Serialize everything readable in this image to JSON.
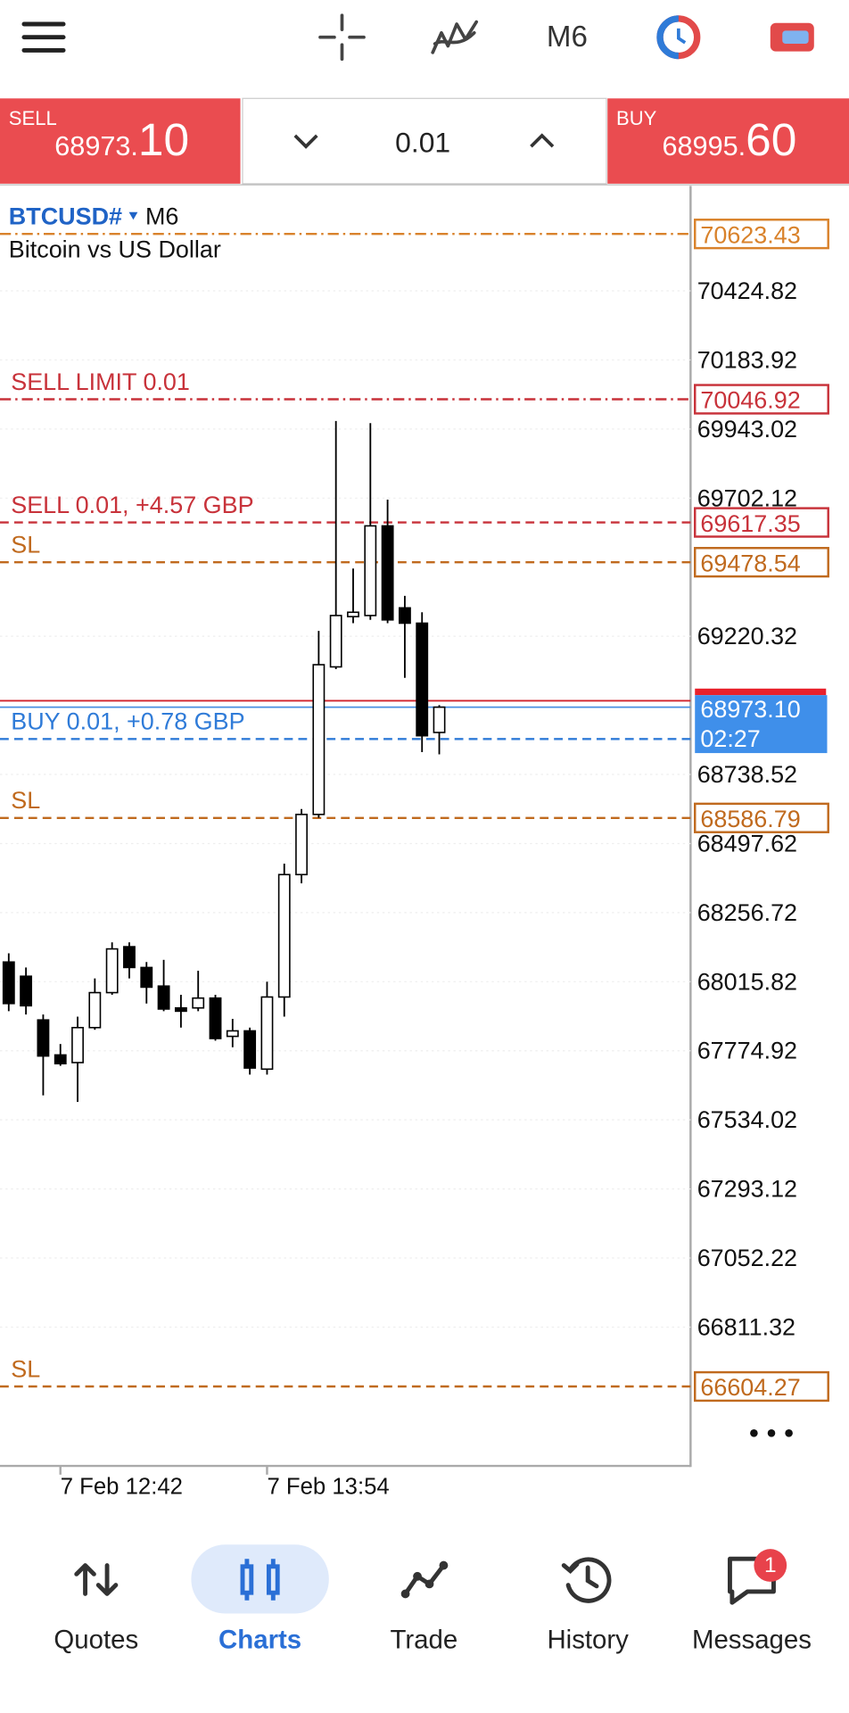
{
  "toolbar": {
    "timeframe": "M6"
  },
  "trade_panel": {
    "sell": {
      "label": "SELL",
      "price_main": "68973.",
      "price_pips": "10"
    },
    "volume": "0.01",
    "buy": {
      "label": "BUY",
      "price_main": "68995.",
      "price_pips": "60"
    }
  },
  "chart_data": {
    "type": "candlestick",
    "symbol": "BTCUSD#",
    "timeframe": "M6",
    "description": "Bitcoin vs US Dollar",
    "categories": [
      null,
      null,
      null,
      "7 Feb 12:42",
      null,
      null,
      null,
      null,
      null,
      null,
      null,
      null,
      null,
      null,
      null,
      "7 Feb 13:54",
      null,
      null,
      null,
      null,
      null,
      null,
      null,
      null,
      null,
      null
    ],
    "open": [
      68084.4,
      68034.8,
      67882.4,
      67760.4,
      67733.7,
      67855.7,
      67977.7,
      68137.8,
      68065.3,
      68000.5,
      67924.3,
      67924.3,
      67958.6,
      67825.2,
      67844.3,
      67710.9,
      67962.4,
      68389.3,
      68599,
      69113.6,
      69288.9,
      69292.7,
      69605.3,
      69319.4,
      69266,
      68884.9
    ],
    "high": [
      68114.9,
      68065.3,
      67901.4,
      67798.5,
      67893.8,
      68027.2,
      68153,
      68153,
      68084.4,
      68092,
      67970.1,
      68053.9,
      67970.1,
      67886.2,
      67855.7,
      68015.8,
      68427.5,
      68618,
      69239.3,
      69971.2,
      69456.6,
      69963.6,
      69696.8,
      69361.3,
      69304.1,
      68980.2
    ],
    "low": [
      67912.9,
      67901.4,
      67619.4,
      67722.3,
      67596.5,
      67848.1,
      67970.1,
      68027.2,
      67939.6,
      67912.9,
      67855.7,
      67912.9,
      67810,
      67787.1,
      67691.8,
      67691.8,
      67893.8,
      68358.8,
      68587.5,
      69105.9,
      69266,
      69277.5,
      69266,
      69075.4,
      68816.3,
      68808.6
    ],
    "close": [
      67939.6,
      67931.9,
      67756.6,
      67729.9,
      67855.7,
      67977.7,
      68130.1,
      68065.3,
      67996.7,
      67920.5,
      67912.9,
      67958.6,
      67817.6,
      67844.3,
      67714.7,
      67962.4,
      68389.3,
      68599,
      69121.2,
      69292.7,
      69304.1,
      69605.3,
      69277.5,
      69266,
      68873.4,
      68973.1
    ],
    "up_color": "#ffffff",
    "down_color": "#000000",
    "ylim": [
      66331,
      70791
    ],
    "yticks": [
      70424.82,
      70183.92,
      69943.02,
      69702.12,
      69220.32,
      68738.52,
      68497.62,
      68256.72,
      68015.82,
      67774.92,
      67534.02,
      67293.12,
      67052.22,
      66811.32
    ],
    "grid": true,
    "levels": [
      {
        "value": 70623.43,
        "color": "#d9822b",
        "style": "dashdot"
      },
      {
        "value": 70046.92,
        "label": "SELL LIMIT 0.01",
        "color": "#c8323a",
        "style": "dashdot"
      },
      {
        "value": 69617.35,
        "label": "SELL 0.01, +4.57 GBP",
        "color": "#c8323a",
        "style": "dashed"
      },
      {
        "value": 69478.54,
        "label": "SL",
        "color": "#c06a1e",
        "style": "dashed"
      },
      {
        "value": 68862,
        "label": "BUY 0.01, +0.78 GBP",
        "color": "#2f7bd8",
        "style": "dashed",
        "box": false
      },
      {
        "value": 68586.79,
        "label": "SL",
        "color": "#c06a1e",
        "style": "dashed"
      },
      {
        "value": 66604.27,
        "label": "SL",
        "color": "#c06a1e",
        "style": "dashed"
      }
    ],
    "ask": 68995.6,
    "bid": {
      "value": 68973.1,
      "label": "68973.10"
    },
    "timer": "02:27"
  },
  "nav": {
    "items": [
      "Quotes",
      "Charts",
      "Trade",
      "History",
      "Messages"
    ],
    "active": 1,
    "badge": 1
  }
}
